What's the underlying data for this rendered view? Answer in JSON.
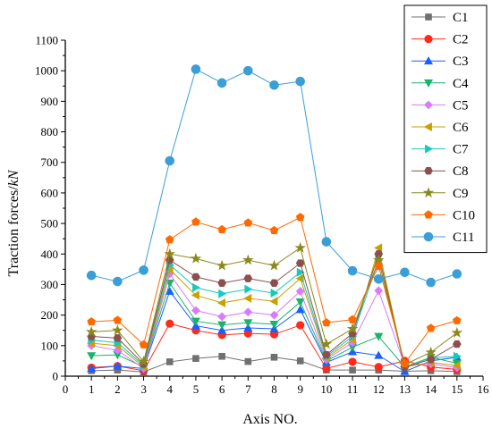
{
  "chart_data": {
    "type": "line",
    "xlabel": "Axis NO.",
    "ylabel_main": "Traction forces/",
    "ylabel_unit": "kN",
    "xlim": [
      0,
      16
    ],
    "ylim": [
      0,
      1100
    ],
    "x_ticks": [
      0,
      1,
      2,
      3,
      4,
      5,
      6,
      7,
      8,
      9,
      10,
      11,
      12,
      13,
      14,
      15,
      16
    ],
    "y_ticks": [
      0,
      100,
      200,
      300,
      400,
      500,
      600,
      700,
      800,
      900,
      1000,
      1100
    ],
    "legend_position": "top-right",
    "grid": false,
    "x": [
      1,
      2,
      3,
      4,
      5,
      6,
      7,
      8,
      9,
      10,
      11,
      12,
      13,
      14,
      15
    ],
    "series": [
      {
        "name": "C1",
        "color": "#707070",
        "marker": "square",
        "values": [
          18,
          20,
          14,
          47,
          58,
          65,
          48,
          62,
          50,
          20,
          20,
          20,
          16,
          18,
          15
        ]
      },
      {
        "name": "C2",
        "color": "#ff2a1a",
        "marker": "circle",
        "values": [
          28,
          33,
          18,
          172,
          150,
          135,
          140,
          137,
          167,
          25,
          47,
          30,
          50,
          30,
          22
        ]
      },
      {
        "name": "C3",
        "color": "#1a5fff",
        "marker": "triangle-up",
        "values": [
          25,
          33,
          25,
          278,
          165,
          150,
          158,
          155,
          218,
          45,
          80,
          68,
          15,
          50,
          62
        ]
      },
      {
        "name": "C4",
        "color": "#1ab36b",
        "marker": "triangle-down",
        "values": [
          67,
          70,
          30,
          305,
          180,
          168,
          175,
          170,
          243,
          50,
          95,
          130,
          30,
          62,
          42
        ]
      },
      {
        "name": "C5",
        "color": "#d97aff",
        "marker": "diamond",
        "values": [
          100,
          85,
          25,
          335,
          215,
          195,
          210,
          200,
          278,
          55,
          110,
          280,
          35,
          40,
          28
        ]
      },
      {
        "name": "C6",
        "color": "#c8a000",
        "marker": "triangle-left",
        "values": [
          108,
          100,
          30,
          350,
          265,
          240,
          255,
          245,
          320,
          60,
          120,
          420,
          30,
          45,
          35
        ]
      },
      {
        "name": "C7",
        "color": "#17c9bd",
        "marker": "triangle-right",
        "values": [
          118,
          110,
          35,
          365,
          290,
          270,
          285,
          272,
          340,
          65,
          130,
          380,
          30,
          60,
          65
        ]
      },
      {
        "name": "C8",
        "color": "#8b4f4f",
        "marker": "hexagon",
        "values": [
          130,
          125,
          40,
          380,
          325,
          305,
          320,
          305,
          370,
          70,
          140,
          400,
          30,
          55,
          105
        ]
      },
      {
        "name": "C9",
        "color": "#8a8a1a",
        "marker": "star",
        "values": [
          145,
          150,
          48,
          400,
          385,
          362,
          380,
          362,
          420,
          105,
          155,
          380,
          38,
          78,
          142
        ]
      },
      {
        "name": "C10",
        "color": "#ff6a00",
        "marker": "pentagon",
        "values": [
          178,
          183,
          103,
          447,
          505,
          480,
          502,
          477,
          520,
          175,
          185,
          360,
          42,
          157,
          182
        ]
      },
      {
        "name": "C11",
        "color": "#3a9fd6",
        "marker": "circle-big",
        "values": [
          330,
          310,
          347,
          705,
          1005,
          960,
          1000,
          953,
          965,
          440,
          345,
          318,
          340,
          307,
          335
        ]
      }
    ]
  }
}
